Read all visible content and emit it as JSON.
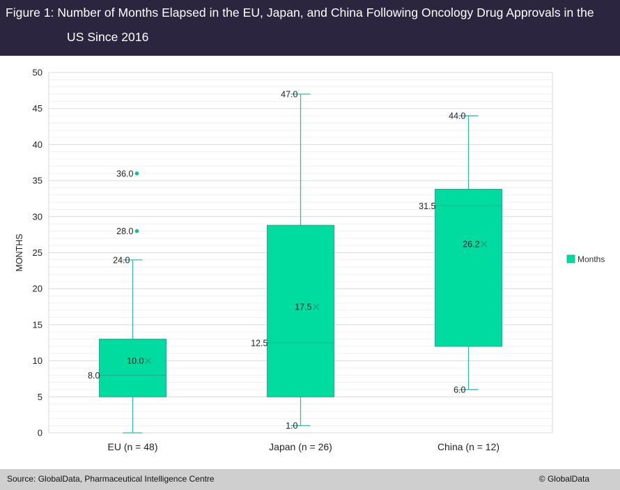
{
  "header": {
    "title_line1": "Figure 1: Number of Months Elapsed in the EU, Japan, and China Following Oncology Drug Approvals in the",
    "title_line2": "US Since 2016"
  },
  "footer": {
    "source": "Source: GlobalData, Pharmaceutical Intelligence Centre",
    "copyright": "© GlobalData"
  },
  "colors": {
    "header_bg": "#2c2540",
    "box_fill": "#00dba0",
    "box_stroke": "#22a893",
    "whisker": "#34b8aa",
    "grid_major": "#d9d9d9",
    "grid_minor": "#efefef",
    "footer_bg": "#cfcfcf"
  },
  "chart_data": {
    "type": "boxplot",
    "title": "Figure 1: Number of Months Elapsed in the EU, Japan, and China Following Oncology Drug Approvals in the US Since 2016",
    "xlabel": "",
    "ylabel": "MONTHS",
    "ylim": [
      0,
      50
    ],
    "yticks": [
      "0",
      "5",
      "10",
      "15",
      "20",
      "25",
      "30",
      "35",
      "40",
      "45",
      "50"
    ],
    "grid": true,
    "legend": {
      "position": "right",
      "entries": [
        "Months"
      ]
    },
    "categories": [
      "EU (n = 48)",
      "Japan (n = 26)",
      "China (n = 12)"
    ],
    "series": [
      {
        "name": "Months",
        "boxes": [
          {
            "min": 0,
            "q1": 5,
            "median": 8,
            "q3": 13,
            "max": 24,
            "mean": 10,
            "outliers": [
              28,
              36
            ],
            "labels": {
              "max": "24.0",
              "median": "8.0",
              "mean": "10.0",
              "outliers": [
                "28.0",
                "36.0"
              ]
            }
          },
          {
            "min": 1,
            "q1": 5,
            "median": 12.5,
            "q3": 28.8,
            "max": 47,
            "mean": 17.5,
            "outliers": [],
            "labels": {
              "max": "47.0",
              "median": "12.5",
              "mean": "17.5",
              "min": "1.0"
            }
          },
          {
            "min": 6,
            "q1": 12,
            "median": 31.5,
            "q3": 33.8,
            "max": 44,
            "mean": 26.2,
            "outliers": [],
            "labels": {
              "max": "44.0",
              "median": "31.5",
              "mean": "26.2",
              "min": "6.0"
            }
          }
        ]
      }
    ]
  }
}
